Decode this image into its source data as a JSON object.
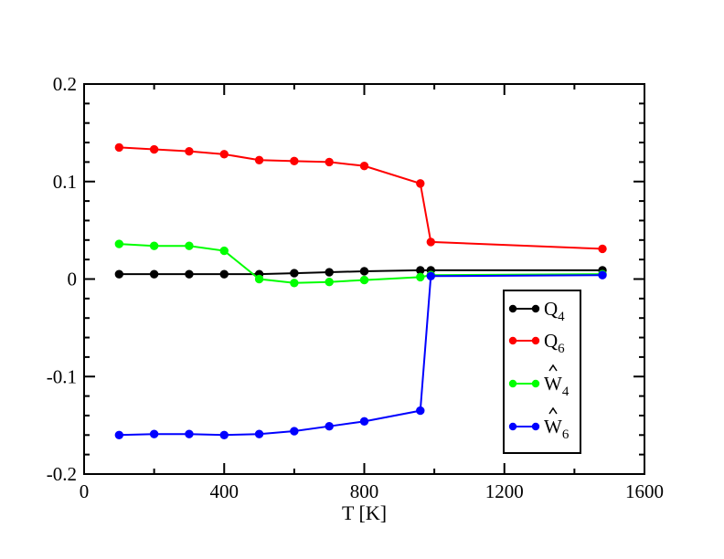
{
  "chart_data": {
    "type": "line",
    "xlabel": "T [K]",
    "ylabel": "",
    "xlim": [
      0,
      1600
    ],
    "ylim": [
      -0.2,
      0.2
    ],
    "x_ticks": [
      "0",
      "400",
      "800",
      "1200",
      "1600"
    ],
    "y_ticks": [
      "-0.2",
      "-0.1",
      "0",
      "0.1",
      "0.2"
    ],
    "x_tick_values": [
      0,
      400,
      800,
      1200,
      1600
    ],
    "y_tick_values": [
      -0.2,
      -0.1,
      0,
      0.1,
      0.2
    ],
    "grid": false,
    "legend_position": "lower-right",
    "series": [
      {
        "name": "Q",
        "subscript": "4",
        "hat": false,
        "color": "#000000",
        "x": [
          100,
          200,
          300,
          400,
          500,
          600,
          700,
          800,
          960,
          990,
          1480
        ],
        "y": [
          0.005,
          0.005,
          0.005,
          0.005,
          0.005,
          0.006,
          0.007,
          0.008,
          0.009,
          0.009,
          0.009
        ]
      },
      {
        "name": "Q",
        "subscript": "6",
        "hat": false,
        "color": "#ff0000",
        "x": [
          100,
          200,
          300,
          400,
          500,
          600,
          700,
          800,
          960,
          990,
          1480
        ],
        "y": [
          0.135,
          0.133,
          0.131,
          0.128,
          0.122,
          0.121,
          0.12,
          0.116,
          0.098,
          0.038,
          0.031
        ]
      },
      {
        "name": "W",
        "subscript": "4",
        "hat": true,
        "color": "#00ff00",
        "x": [
          100,
          200,
          300,
          400,
          500,
          600,
          700,
          800,
          960,
          990,
          1480
        ],
        "y": [
          0.036,
          0.034,
          0.034,
          0.029,
          0.0,
          -0.004,
          -0.003,
          -0.001,
          0.002,
          0.004,
          0.005
        ]
      },
      {
        "name": "W",
        "subscript": "6",
        "hat": true,
        "color": "#0000ff",
        "x": [
          100,
          200,
          300,
          400,
          500,
          600,
          700,
          800,
          960,
          990,
          1480
        ],
        "y": [
          -0.16,
          -0.159,
          -0.159,
          -0.16,
          -0.159,
          -0.156,
          -0.151,
          -0.146,
          -0.135,
          0.003,
          0.004
        ]
      }
    ]
  }
}
